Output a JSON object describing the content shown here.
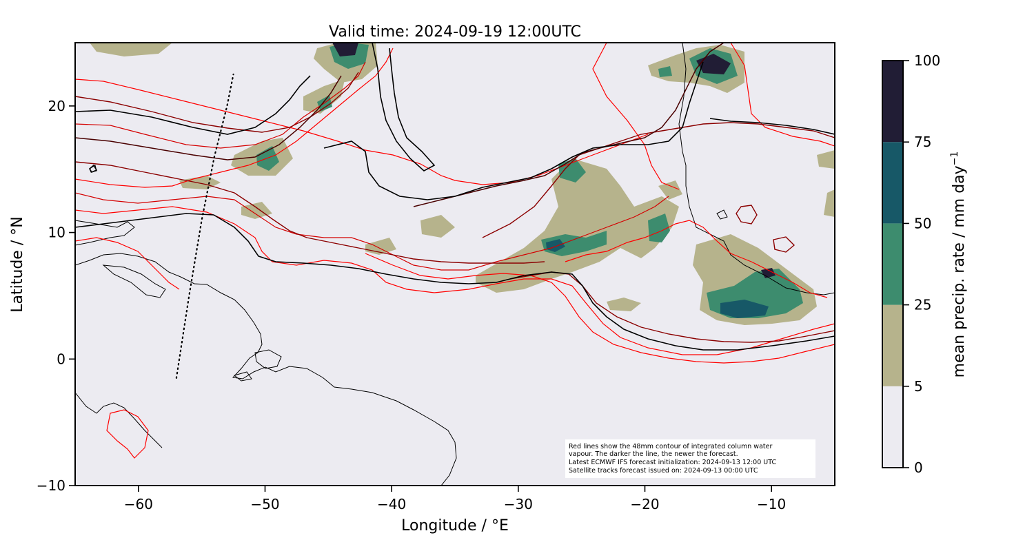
{
  "title": "Valid time: 2024-09-19 12:00UTC",
  "map": {
    "xlabel": "Longitude / °E",
    "ylabel": "Latitude / °N",
    "xlim": [
      -65,
      -5
    ],
    "ylim": [
      -10,
      25
    ],
    "x_ticks": [
      {
        "value": -60,
        "label": "−60"
      },
      {
        "value": -50,
        "label": "−50"
      },
      {
        "value": -40,
        "label": "−40"
      },
      {
        "value": -30,
        "label": "−30"
      },
      {
        "value": -20,
        "label": "−20"
      },
      {
        "value": -10,
        "label": "−10"
      }
    ],
    "y_ticks": [
      {
        "value": 20,
        "label": "20"
      },
      {
        "value": 10,
        "label": "10"
      },
      {
        "value": 0,
        "label": "0"
      },
      {
        "value": -10,
        "label": "−10"
      }
    ],
    "background_color": "#ecebf1",
    "coastline_color": "#000000",
    "contour_colors": [
      "#ff0000",
      "#d40000",
      "#8b0000",
      "#4a0000",
      "#000000"
    ],
    "satellite_track": {
      "style": "dotted",
      "points": [
        [
          -57.0,
          -1.5
        ],
        [
          -56.0,
          5.0
        ],
        [
          -55.0,
          11.0
        ],
        [
          -54.0,
          16.0
        ],
        [
          -53.0,
          20.0
        ],
        [
          -52.5,
          22.5
        ]
      ]
    }
  },
  "note": {
    "lines": [
      "Red lines show the 48mm contour of integrated column water",
      "vapour. The darker the line, the newer the forecast.",
      "Latest ECMWF IFS forecast initialization: 2024-09-13 12:00 UTC",
      "Satellite tracks forecast issued on: 2024-09-13 00:00 UTC"
    ]
  },
  "colorbar": {
    "label": "mean precip. rate / mm day",
    "label_superscript": "−1",
    "levels": [
      {
        "from": 0,
        "to": 5,
        "color": "#ecebf1"
      },
      {
        "from": 5,
        "to": 25,
        "color": "#b6b38c"
      },
      {
        "from": 25,
        "to": 50,
        "color": "#3d8c6e"
      },
      {
        "from": 50,
        "to": 75,
        "color": "#175867"
      },
      {
        "from": 75,
        "to": 100,
        "color": "#211d35"
      }
    ],
    "tick_labels": [
      "0",
      "5",
      "25",
      "50",
      "75",
      "100"
    ]
  }
}
